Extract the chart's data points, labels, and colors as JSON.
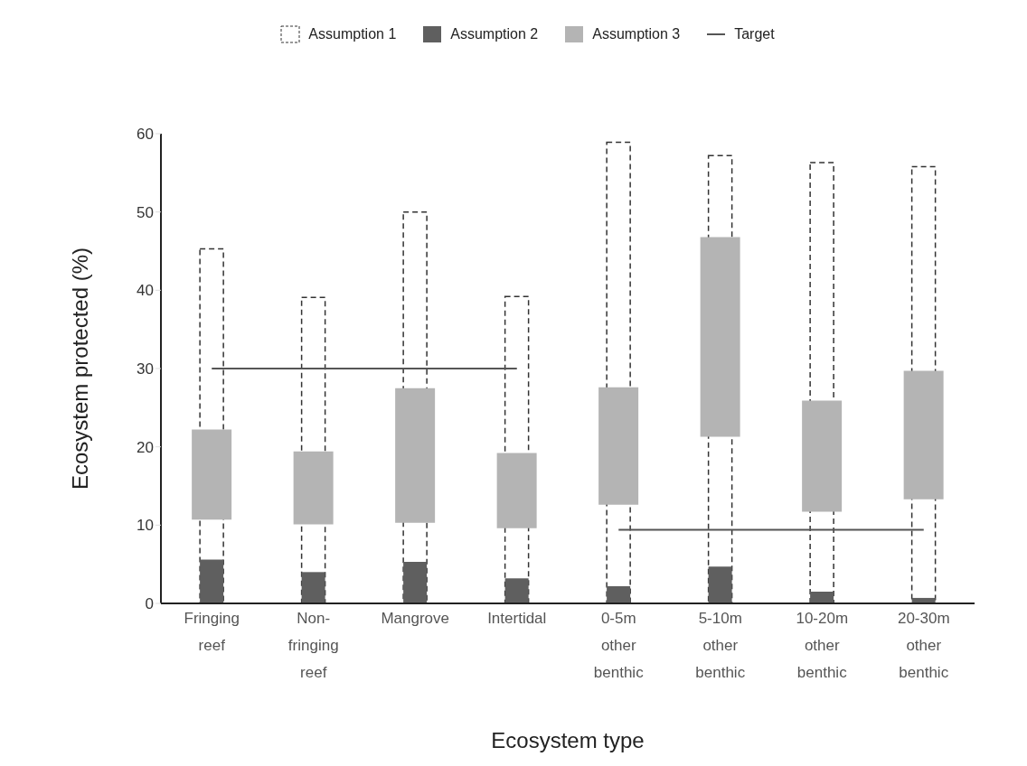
{
  "chart_data": {
    "type": "bar",
    "xlabel": "Ecosystem type",
    "ylabel": "Ecosystem protected (%)",
    "categories": [
      "Fringing reef",
      "Non-fringing reef",
      "Mangrove",
      "Intertidal",
      "0-5m other benthic",
      "5-10m other benthic",
      "10-20m other benthic",
      "20-30m other benthic"
    ],
    "series": [
      {
        "name": "Assumption 1",
        "color": "#333333",
        "line_style": "dashed",
        "values": [
          45.3,
          39.1,
          50.0,
          39.2,
          58.9,
          57.2,
          56.3,
          55.8
        ]
      },
      {
        "name": "Assumption 2",
        "color": "#5f5f5f",
        "values": [
          5.6,
          4.0,
          5.3,
          3.2,
          2.2,
          4.7,
          1.5,
          0.7
        ]
      },
      {
        "name": "Assumption 3",
        "color": "#b4b4b4",
        "base": [
          10.7,
          10.1,
          10.3,
          9.6,
          12.6,
          21.3,
          11.7,
          13.3
        ],
        "values": [
          11.5,
          9.3,
          17.2,
          9.6,
          15.0,
          25.5,
          14.2,
          16.4
        ]
      },
      {
        "name": "Target",
        "type": "line",
        "color": "#555555",
        "values": [
          30,
          30,
          30,
          30,
          9.4,
          9.4,
          9.4,
          9.4
        ]
      }
    ],
    "ylim": [
      0,
      60
    ],
    "yticks": [
      0,
      10,
      20,
      30,
      40,
      50,
      60
    ],
    "grid": false,
    "legend": "top"
  }
}
